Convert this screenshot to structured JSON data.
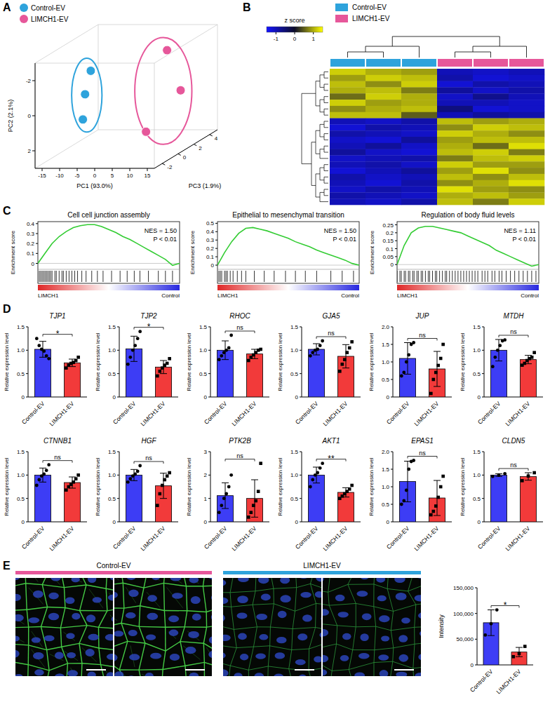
{
  "chart_data": [
    {
      "type": "scatter3d",
      "panel": "A",
      "legend": "top-left",
      "x_label": "PC1 (93.0%)",
      "y_label": "PC2 (2.1%)",
      "z_label": "PC3 (1.9%)",
      "xlim": [
        -17,
        17
      ],
      "xticks": [
        -15,
        -10,
        -5,
        0,
        5,
        10,
        15
      ],
      "ylim": [
        -3,
        3
      ],
      "yticks": [
        -2,
        0,
        2
      ],
      "zlim": [
        -3,
        5
      ],
      "zticks": [
        -2,
        0,
        2,
        4
      ],
      "series": [
        {
          "name": "Control-EV",
          "color": "#2ea3dc",
          "marker": "circle",
          "x": [
            -9,
            -9.5,
            -9
          ],
          "y": [
            -1.6,
            -0.4,
            0.9
          ],
          "z": [
            0.5,
            0,
            -0.5
          ]
        },
        {
          "name": "LIMCH1-EV",
          "color": "#e6579a",
          "marker": "circle",
          "x": [
            10.5,
            11,
            9
          ],
          "y": [
            -2.5,
            0.2,
            1.6
          ],
          "z": [
            1.5,
            3,
            -0.5
          ]
        }
      ]
    },
    {
      "type": "heatmap",
      "panel": "B",
      "legend": "top",
      "groups": [
        {
          "name": "Control-EV",
          "color": "#2ea3dc"
        },
        {
          "name": "LIMCH1-EV",
          "color": "#e6579a"
        }
      ],
      "column_groups": [
        0,
        0,
        0,
        1,
        1,
        1
      ],
      "colorbar": {
        "label": "z score",
        "range": [
          -1.5,
          1.5
        ],
        "ticks": [
          -1,
          0,
          1
        ]
      },
      "cells": [
        [
          1.2,
          1.0,
          0.9,
          -1.0,
          -1.1,
          -1.0
        ],
        [
          0.9,
          1.2,
          1.1,
          -0.9,
          -1.2,
          -1.1
        ],
        [
          1.1,
          0.8,
          1.2,
          -1.2,
          -0.9,
          -1.0
        ],
        [
          1.0,
          1.1,
          0.7,
          -0.8,
          -1.1,
          -0.9
        ],
        [
          0.6,
          1.2,
          1.0,
          -1.1,
          -0.7,
          -1.0
        ],
        [
          1.2,
          0.9,
          1.0,
          -1.0,
          -1.0,
          -1.1
        ],
        [
          0.8,
          1.0,
          1.1,
          -0.6,
          -1.2,
          -1.1
        ],
        [
          1.1,
          1.1,
          0.5,
          -1.0,
          -0.8,
          -0.9
        ],
        [
          -1.0,
          -1.1,
          -0.9,
          1.1,
          0.9,
          1.0
        ],
        [
          -1.2,
          -0.9,
          -1.0,
          0.8,
          1.2,
          1.1
        ],
        [
          -0.9,
          -1.0,
          -1.1,
          1.2,
          1.0,
          0.8
        ],
        [
          -1.1,
          -1.2,
          -0.8,
          0.9,
          1.1,
          1.1
        ],
        [
          -1.0,
          -0.8,
          -1.1,
          1.0,
          0.6,
          1.3
        ],
        [
          -0.8,
          -1.1,
          -1.2,
          1.1,
          1.2,
          0.7
        ],
        [
          -1.1,
          -1.0,
          -0.9,
          0.7,
          1.1,
          1.2
        ],
        [
          -1.0,
          -0.9,
          -1.1,
          1.2,
          0.9,
          0.9
        ],
        [
          -1.2,
          -1.0,
          -0.8,
          0.9,
          1.3,
          0.8
        ],
        [
          -0.9,
          -1.1,
          -1.0,
          1.1,
          0.8,
          1.1
        ],
        [
          -1.0,
          -1.2,
          -0.9,
          0.8,
          1.0,
          1.3
        ],
        [
          -1.1,
          -0.9,
          -1.0,
          1.3,
          0.9,
          0.8
        ],
        [
          -0.9,
          -1.0,
          -1.1,
          1.0,
          1.1,
          0.9
        ],
        [
          -1.0,
          -1.1,
          -0.9,
          1.1,
          0.7,
          1.2
        ]
      ]
    },
    {
      "type": "line",
      "panel": "C",
      "title": "Cell cell junction assembly",
      "y_label": "Enrichment score",
      "color": "#33cc33",
      "tick_labels": "y",
      "x": [
        0,
        5,
        10,
        15,
        20,
        25,
        30,
        35,
        40,
        45,
        50,
        55,
        60,
        65,
        70,
        75,
        80,
        85,
        90,
        95,
        100
      ],
      "values": [
        0,
        0.1,
        0.2,
        0.27,
        0.32,
        0.36,
        0.38,
        0.39,
        0.39,
        0.37,
        0.34,
        0.31,
        0.27,
        0.24,
        0.2,
        0.16,
        0.12,
        0.08,
        0.04,
        -0.02,
        0
      ],
      "hits": [
        1,
        2,
        3,
        4,
        5,
        6,
        7,
        8,
        9,
        10,
        12,
        13,
        15,
        17,
        18,
        20,
        22,
        24,
        26,
        28,
        31,
        34,
        38,
        42,
        46,
        52,
        58,
        63,
        68,
        72,
        78,
        85,
        90,
        95
      ],
      "xlim": [
        0,
        100
      ],
      "ylim": [
        -0.06,
        0.42
      ],
      "yticks": [
        0,
        0.1,
        0.2,
        0.3,
        0.4
      ],
      "annotations": [
        "NES = 1.50",
        "P < 0.01"
      ],
      "x_end_labels": [
        "LIMCH1",
        "Control"
      ]
    },
    {
      "type": "line",
      "title": "Epithelial to mesenchymal transition",
      "y_label": "Enrichment score",
      "color": "#33cc33",
      "tick_labels": "y",
      "x": [
        0,
        5,
        10,
        15,
        20,
        25,
        30,
        35,
        40,
        45,
        50,
        55,
        60,
        65,
        70,
        75,
        80,
        85,
        90,
        95,
        100
      ],
      "values": [
        0,
        0.15,
        0.28,
        0.38,
        0.44,
        0.45,
        0.43,
        0.41,
        0.38,
        0.35,
        0.32,
        0.28,
        0.25,
        0.22,
        0.18,
        0.15,
        0.12,
        0.09,
        0.06,
        0.02,
        0
      ],
      "hits": [
        1,
        2,
        3,
        5,
        6,
        7,
        9,
        11,
        14,
        17,
        20,
        26,
        33,
        40,
        48,
        55,
        62,
        70,
        80,
        88,
        96
      ],
      "xlim": [
        0,
        100
      ],
      "ylim": [
        -0.05,
        0.52
      ],
      "yticks": [
        0,
        0.1,
        0.2,
        0.3,
        0.4,
        0.5
      ],
      "annotations": [
        "NES = 1.50",
        "P < 0.01"
      ],
      "x_end_labels": [
        "LIMCH1",
        "Control"
      ]
    },
    {
      "type": "line",
      "title": "Regulation of body fluid levels",
      "y_label": "Enrichment score",
      "color": "#33cc33",
      "tick_labels": "y",
      "x": [
        0,
        5,
        10,
        15,
        20,
        25,
        30,
        35,
        40,
        45,
        50,
        55,
        60,
        65,
        70,
        75,
        80,
        85,
        90,
        95,
        100
      ],
      "values": [
        0,
        0.12,
        0.2,
        0.23,
        0.24,
        0.24,
        0.23,
        0.22,
        0.21,
        0.2,
        0.18,
        0.16,
        0.14,
        0.12,
        0.09,
        0.07,
        0.05,
        0.03,
        0.01,
        -0.01,
        0
      ],
      "hits": [
        0,
        2,
        3,
        5,
        6,
        8,
        9,
        11,
        12,
        14,
        15,
        17,
        18,
        20,
        22,
        23,
        25,
        27,
        28,
        30,
        32,
        34,
        35,
        37,
        39,
        41,
        43,
        45,
        47,
        49,
        51,
        53,
        55,
        57,
        60,
        62,
        64,
        67,
        69,
        72,
        74,
        77,
        80,
        83,
        86,
        89,
        92,
        95,
        98
      ],
      "xlim": [
        0,
        100
      ],
      "ylim": [
        -0.03,
        0.27
      ],
      "yticks": [
        0,
        0.05,
        0.1,
        0.15,
        0.2,
        0.25
      ],
      "annotations": [
        "NES = 1.11",
        "P < 0.01"
      ],
      "x_end_labels": [
        "LIMCH1",
        "Control"
      ]
    },
    {
      "type": "bar",
      "panel": "D",
      "title": "TJP1",
      "y_label": "Relative expression level",
      "categories": [
        "Control-EV",
        "LIMCH1-EV"
      ],
      "colors": [
        "#3d3df5",
        "#f23a3a"
      ],
      "values": [
        1.02,
        0.73
      ],
      "errors": [
        0.17,
        0.08
      ],
      "points": [
        [
          1.25,
          1.1,
          1.02,
          0.98,
          0.88,
          0.82
        ],
        [
          0.62,
          0.68,
          0.72,
          0.74,
          0.78,
          0.85
        ]
      ],
      "ylim": [
        0,
        1.5
      ],
      "yticks": [
        0,
        0.5,
        {
          "value": 1,
          "label": "1.0"
        },
        1.5
      ],
      "annotation": "*"
    },
    {
      "type": "bar",
      "title": "TJP2",
      "y_label": "Relative expression level",
      "categories": [
        "Control-EV",
        "LIMCH1-EV"
      ],
      "colors": [
        "#3d3df5",
        "#f23a3a"
      ],
      "values": [
        1.03,
        0.64
      ],
      "errors": [
        0.27,
        0.14
      ],
      "points": [
        [
          0.7,
          0.85,
          1.0,
          1.1,
          1.25,
          1.4
        ],
        [
          0.45,
          0.55,
          0.62,
          0.68,
          0.72,
          0.82
        ]
      ],
      "ylim": [
        0,
        1.5
      ],
      "yticks": [
        0,
        0.5,
        {
          "value": 1,
          "label": "1.0"
        },
        1.5
      ],
      "annotation": "*"
    },
    {
      "type": "bar",
      "title": "RHOC",
      "y_label": "Relative expression level",
      "categories": [
        "Control-EV",
        "LIMCH1-EV"
      ],
      "colors": [
        "#3d3df5",
        "#f23a3a"
      ],
      "values": [
        1.0,
        0.92
      ],
      "errors": [
        0.2,
        0.1
      ],
      "points": [
        [
          0.8,
          0.88,
          0.95,
          1.0,
          1.05,
          1.32
        ],
        [
          0.78,
          0.85,
          0.9,
          0.95,
          1.0,
          1.02
        ]
      ],
      "ylim": [
        0,
        1.5
      ],
      "yticks": [
        0,
        0.5,
        {
          "value": 1,
          "label": "1.0"
        },
        1.5
      ],
      "annotation": "ns"
    },
    {
      "type": "bar",
      "title": "GJA5",
      "y_label": "Relative expression level",
      "categories": [
        "Control-EV",
        "LIMCH1-EV"
      ],
      "colors": [
        "#3d3df5",
        "#f23a3a"
      ],
      "values": [
        1.02,
        0.87
      ],
      "errors": [
        0.12,
        0.25
      ],
      "points": [
        [
          0.88,
          0.95,
          1.0,
          1.02,
          1.1,
          1.2
        ],
        [
          0.55,
          0.7,
          0.8,
          0.95,
          1.05,
          1.18
        ]
      ],
      "ylim": [
        0,
        1.5
      ],
      "yticks": [
        0,
        0.5,
        {
          "value": 1,
          "label": "1.0"
        },
        1.5
      ],
      "annotation": "ns"
    },
    {
      "type": "bar",
      "title": "JUP",
      "y_label": "Relative expression level",
      "categories": [
        "Control-EV",
        "LIMCH1-EV"
      ],
      "colors": [
        "#3d3df5",
        "#f23a3a"
      ],
      "values": [
        1.1,
        0.8
      ],
      "errors": [
        0.45,
        0.5
      ],
      "points": [
        [
          0.6,
          0.7,
          1.0,
          1.2,
          1.5,
          1.55
        ],
        [
          0.1,
          0.5,
          0.7,
          0.9,
          1.1,
          1.5
        ]
      ],
      "ylim": [
        0,
        2
      ],
      "yticks": [
        0,
        0.5,
        {
          "value": 1,
          "label": "1.0"
        },
        1.5,
        {
          "value": 2,
          "label": "2.0"
        }
      ],
      "annotation": "ns"
    },
    {
      "type": "bar",
      "title": "MTDH",
      "y_label": "Relative expression level",
      "categories": [
        "Control-EV",
        "LIMCH1-EV"
      ],
      "colors": [
        "#3d3df5",
        "#f23a3a"
      ],
      "values": [
        1.0,
        0.8
      ],
      "errors": [
        0.23,
        0.09
      ],
      "points": [
        [
          0.65,
          0.85,
          1.0,
          1.1,
          1.2,
          1.22
        ],
        [
          0.68,
          0.72,
          0.78,
          0.82,
          0.85,
          0.95
        ]
      ],
      "ylim": [
        0,
        1.5
      ],
      "yticks": [
        0,
        0.5,
        {
          "value": 1,
          "label": "1.0"
        },
        1.5
      ],
      "annotation": "ns"
    },
    {
      "type": "bar",
      "title": "CTNNB1",
      "y_label": "Relative expression level",
      "categories": [
        "Control-EV",
        "LIMCH1-EV"
      ],
      "colors": [
        "#3d3df5",
        "#f23a3a"
      ],
      "values": [
        1.0,
        0.84
      ],
      "errors": [
        0.15,
        0.12
      ],
      "points": [
        [
          0.78,
          0.9,
          0.98,
          1.02,
          1.1,
          1.22
        ],
        [
          0.68,
          0.75,
          0.8,
          0.85,
          0.92,
          1.0
        ]
      ],
      "ylim": [
        0,
        1.5
      ],
      "yticks": [
        0,
        0.5,
        {
          "value": 1,
          "label": "1.0"
        },
        1.5
      ],
      "annotation": "ns"
    },
    {
      "type": "bar",
      "title": "HGF",
      "y_label": "Relative expression level",
      "categories": [
        "Control-EV",
        "LIMCH1-EV"
      ],
      "colors": [
        "#3d3df5",
        "#f23a3a"
      ],
      "values": [
        1.0,
        0.77
      ],
      "errors": [
        0.12,
        0.27
      ],
      "points": [
        [
          0.85,
          0.92,
          0.98,
          1.02,
          1.08,
          1.2
        ],
        [
          0.35,
          0.6,
          0.78,
          0.9,
          0.98,
          1.05
        ]
      ],
      "ylim": [
        0,
        1.5
      ],
      "yticks": [
        0,
        0.5,
        {
          "value": 1,
          "label": "1.0"
        },
        1.5
      ],
      "annotation": "ns"
    },
    {
      "type": "bar",
      "title": "PTK2B",
      "y_label": "Relative expression level",
      "categories": [
        "Control-EV",
        "LIMCH1-EV"
      ],
      "colors": [
        "#3d3df5",
        "#f23a3a"
      ],
      "values": [
        1.12,
        1.0
      ],
      "errors": [
        0.55,
        0.8
      ],
      "points": [
        [
          0.4,
          0.7,
          1.0,
          1.2,
          1.5,
          2.0
        ],
        [
          0.2,
          0.4,
          0.7,
          0.9,
          1.3,
          2.5
        ]
      ],
      "ylim": [
        0,
        3
      ],
      "yticks": [
        0,
        1,
        2,
        3
      ],
      "annotation": "ns"
    },
    {
      "type": "bar",
      "title": "AKT1",
      "y_label": "Relative expression level",
      "categories": [
        "Control-EV",
        "LIMCH1-EV"
      ],
      "colors": [
        "#3d3df5",
        "#f23a3a"
      ],
      "values": [
        1.0,
        0.63
      ],
      "errors": [
        0.17,
        0.1
      ],
      "points": [
        [
          0.75,
          0.9,
          1.0,
          1.05,
          1.15,
          1.25
        ],
        [
          0.5,
          0.55,
          0.6,
          0.65,
          0.7,
          0.78
        ]
      ],
      "ylim": [
        0,
        1.5
      ],
      "yticks": [
        0,
        0.5,
        {
          "value": 1,
          "label": "1.0"
        },
        1.5
      ],
      "annotation": "**"
    },
    {
      "type": "bar",
      "title": "EPAS1",
      "y_label": "Relative expression level",
      "categories": [
        "Control-EV",
        "LIMCH1-EV"
      ],
      "colors": [
        "#3d3df5",
        "#f23a3a"
      ],
      "values": [
        1.15,
        0.68
      ],
      "errors": [
        0.58,
        0.5
      ],
      "points": [
        [
          0.5,
          0.6,
          0.9,
          1.5,
          1.72,
          1.75
        ],
        [
          0.2,
          0.3,
          0.45,
          0.7,
          1.0,
          1.3
        ]
      ],
      "ylim": [
        0,
        2
      ],
      "yticks": [
        0,
        0.5,
        {
          "value": 1,
          "label": "1.0"
        },
        1.5,
        {
          "value": 2,
          "label": "2.0"
        }
      ],
      "annotation": "ns"
    },
    {
      "type": "bar",
      "title": "CLDN5",
      "y_label": "Relative expression level",
      "categories": [
        "Control-EV",
        "LIMCH1-EV"
      ],
      "colors": [
        "#3d3df5",
        "#f23a3a"
      ],
      "values": [
        1.0,
        0.97
      ],
      "errors": [
        0.03,
        0.08
      ],
      "points": [
        [
          0.97,
          1.0,
          1.03
        ],
        [
          0.88,
          0.98,
          1.05
        ]
      ],
      "ylim": [
        0,
        1.5
      ],
      "yticks": [
        0,
        0.5,
        {
          "value": 1,
          "label": "1.0"
        },
        1.5
      ],
      "annotation": "ns"
    },
    {
      "type": "bar",
      "panel": "E",
      "y_label": "Intensity",
      "categories": [
        "Control-EV",
        "LIMCH1-EV"
      ],
      "colors": [
        "#3d3df5",
        "#f23a3a"
      ],
      "values": [
        82000,
        25000
      ],
      "errors": [
        25000,
        9000
      ],
      "points": [
        [
          58000,
          80000,
          107000
        ],
        [
          16000,
          22000,
          36000
        ]
      ],
      "ylim": [
        0,
        150000
      ],
      "yticks": [
        0,
        {
          "value": 50000,
          "label": "50,000"
        },
        {
          "value": 100000,
          "label": "100,000"
        },
        {
          "value": 150000,
          "label": "150,000"
        }
      ],
      "annotation": "*",
      "image_labels": [
        "Control-EV",
        "LIMCH1-EV"
      ]
    }
  ]
}
